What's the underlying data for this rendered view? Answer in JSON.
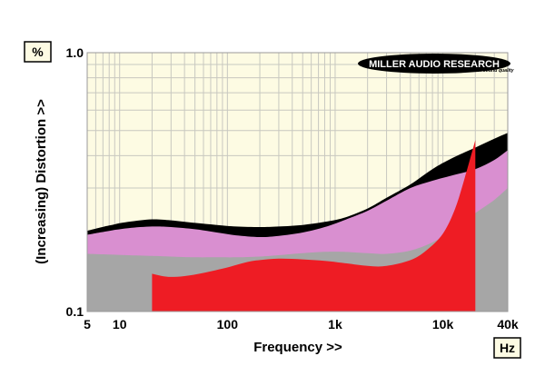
{
  "unit_y": "%",
  "unit_x": "Hz",
  "logo": {
    "name": "MILLER AUDIO RESEARCH",
    "tagline": "Setting the measure of sound quality"
  },
  "chart_data": {
    "type": "area",
    "title": "",
    "xlabel": "Frequency >>",
    "ylabel": "(Increasing) Distortion >>",
    "xscale": "log",
    "yscale": "log",
    "xlim": [
      5,
      40000
    ],
    "ylim": [
      0.1,
      1.0
    ],
    "grid": true,
    "x_ticks": [
      {
        "value": 5,
        "label": "5"
      },
      {
        "value": 10,
        "label": "10"
      },
      {
        "value": 100,
        "label": "100"
      },
      {
        "value": 1000,
        "label": "1k"
      },
      {
        "value": 10000,
        "label": "10k"
      },
      {
        "value": 40000,
        "label": "40k"
      }
    ],
    "y_ticks": [
      {
        "value": 1.0,
        "label": "1.0"
      },
      {
        "value": 0.1,
        "label": "0.1"
      }
    ],
    "colors": {
      "plot_bg": "#fdfbe3",
      "grid": "#c8c8c0",
      "black_band": "#000000",
      "pink": "#d98fd0",
      "gray": "#a6a6a6",
      "red": "#ee1c24"
    },
    "series": [
      {
        "color": "black",
        "x": [
          5,
          8,
          12,
          20,
          30,
          50,
          80,
          120,
          200,
          300,
          500,
          800,
          1200,
          2000,
          3000,
          5000,
          8000,
          12000,
          20000,
          30000,
          40000
        ],
        "y": [
          0.205,
          0.215,
          0.222,
          0.227,
          0.225,
          0.22,
          0.216,
          0.213,
          0.212,
          0.213,
          0.216,
          0.222,
          0.23,
          0.25,
          0.275,
          0.31,
          0.355,
          0.39,
          0.43,
          0.465,
          0.49
        ]
      },
      {
        "color": "pink",
        "x": [
          5,
          8,
          12,
          20,
          30,
          50,
          80,
          120,
          200,
          300,
          500,
          800,
          1200,
          2000,
          3000,
          5000,
          8000,
          12000,
          20000,
          30000,
          40000
        ],
        "y": [
          0.198,
          0.205,
          0.21,
          0.213,
          0.212,
          0.208,
          0.202,
          0.197,
          0.194,
          0.196,
          0.202,
          0.212,
          0.225,
          0.245,
          0.268,
          0.3,
          0.32,
          0.335,
          0.355,
          0.385,
          0.42
        ]
      },
      {
        "color": "gray",
        "x": [
          5,
          8,
          12,
          20,
          30,
          50,
          80,
          120,
          200,
          300,
          500,
          800,
          1200,
          2000,
          3000,
          5000,
          8000,
          12000,
          20000,
          30000,
          40000
        ],
        "y": [
          0.167,
          0.166,
          0.165,
          0.164,
          0.163,
          0.162,
          0.162,
          0.162,
          0.163,
          0.165,
          0.168,
          0.17,
          0.17,
          0.168,
          0.167,
          0.172,
          0.185,
          0.205,
          0.24,
          0.27,
          0.3
        ]
      },
      {
        "color": "red",
        "x": [
          20,
          25,
          30,
          40,
          60,
          100,
          150,
          200,
          300,
          500,
          800,
          1200,
          2000,
          3000,
          5000,
          7000,
          10000,
          13000,
          16000,
          20000
        ],
        "y": [
          0.14,
          0.137,
          0.136,
          0.137,
          0.141,
          0.148,
          0.155,
          0.158,
          0.16,
          0.159,
          0.157,
          0.154,
          0.15,
          0.15,
          0.158,
          0.172,
          0.2,
          0.25,
          0.33,
          0.46
        ]
      }
    ]
  }
}
